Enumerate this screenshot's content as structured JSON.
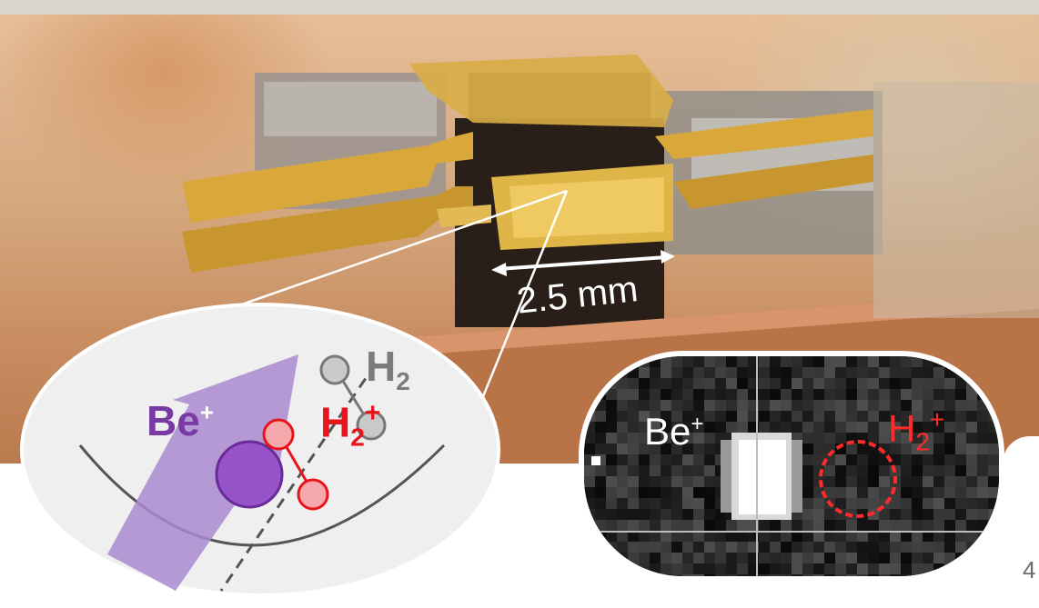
{
  "photo": {
    "scale_bar_label": "2.5 mm"
  },
  "schematic": {
    "be_label": "Be",
    "be_charge": "+",
    "h2_label": "H",
    "h2_subscript": "2",
    "h2_ion_label": "H",
    "h2_ion_subscript": "2",
    "h2_ion_charge": "+",
    "colors": {
      "be": "#7a3aa6",
      "h2_ion": "#e8131b",
      "h2_neutral": "#7c7c7c"
    }
  },
  "inset_image": {
    "be_label": "Be",
    "be_charge": "+",
    "h2_ion_label": "H",
    "h2_ion_subscript": "2",
    "h2_ion_charge": "+"
  },
  "page_number": "4"
}
